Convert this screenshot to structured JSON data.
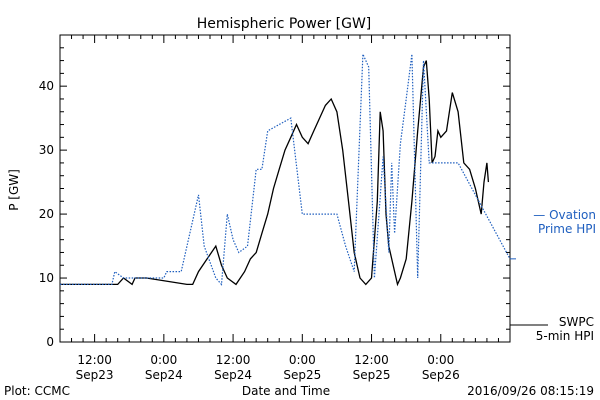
{
  "chart_data": {
    "type": "line",
    "title": "Hemispheric Power [GW]",
    "ylabel": "P [GW]",
    "xlabel": "Date and Time",
    "ylim": [
      0,
      48
    ],
    "yticks": [
      0,
      10,
      20,
      30,
      40
    ],
    "xlim": [
      "2016-09-23 06:00",
      "2016-09-26 12:00"
    ],
    "xticks": [
      {
        "t": "2016-09-23 12:00",
        "time": "12:00",
        "date": "Sep23"
      },
      {
        "t": "2016-09-24 00:00",
        "time": "0:00",
        "date": "Sep24"
      },
      {
        "t": "2016-09-24 12:00",
        "time": "12:00",
        "date": "Sep24"
      },
      {
        "t": "2016-09-25 00:00",
        "time": "0:00",
        "date": "Sep25"
      },
      {
        "t": "2016-09-25 12:00",
        "time": "12:00",
        "date": "Sep25"
      },
      {
        "t": "2016-09-26 00:00",
        "time": "0:00",
        "date": "Sep26"
      }
    ],
    "series": [
      {
        "name": "SWPC 5-min HPI",
        "color": "#000000",
        "style": "solid",
        "points": [
          [
            "2016-09-23 06:00",
            9
          ],
          [
            "2016-09-23 16:00",
            9
          ],
          [
            "2016-09-23 17:00",
            10
          ],
          [
            "2016-09-23 18:30",
            9
          ],
          [
            "2016-09-23 19:00",
            10
          ],
          [
            "2016-09-23 21:00",
            10
          ],
          [
            "2016-09-24 04:00",
            9
          ],
          [
            "2016-09-24 05:00",
            9
          ],
          [
            "2016-09-24 06:00",
            11
          ],
          [
            "2016-09-24 07:30",
            13
          ],
          [
            "2016-09-24 09:00",
            15
          ],
          [
            "2016-09-24 10:00",
            12
          ],
          [
            "2016-09-24 11:00",
            10
          ],
          [
            "2016-09-24 12:30",
            9
          ],
          [
            "2016-09-24 14:00",
            11
          ],
          [
            "2016-09-24 15:00",
            13
          ],
          [
            "2016-09-24 16:00",
            14
          ],
          [
            "2016-09-24 17:00",
            17
          ],
          [
            "2016-09-24 18:00",
            20
          ],
          [
            "2016-09-24 19:00",
            24
          ],
          [
            "2016-09-24 20:00",
            27
          ],
          [
            "2016-09-24 21:00",
            30
          ],
          [
            "2016-09-24 22:00",
            32
          ],
          [
            "2016-09-24 23:00",
            34
          ],
          [
            "2016-09-25 00:00",
            32
          ],
          [
            "2016-09-25 01:00",
            31
          ],
          [
            "2016-09-25 02:00",
            33
          ],
          [
            "2016-09-25 03:00",
            35
          ],
          [
            "2016-09-25 04:00",
            37
          ],
          [
            "2016-09-25 05:00",
            38
          ],
          [
            "2016-09-25 06:00",
            36
          ],
          [
            "2016-09-25 07:00",
            30
          ],
          [
            "2016-09-25 08:00",
            22
          ],
          [
            "2016-09-25 09:00",
            14
          ],
          [
            "2016-09-25 10:00",
            10
          ],
          [
            "2016-09-25 11:00",
            9
          ],
          [
            "2016-09-25 12:00",
            10
          ],
          [
            "2016-09-25 13:00",
            22
          ],
          [
            "2016-09-25 13:30",
            36
          ],
          [
            "2016-09-25 14:00",
            33
          ],
          [
            "2016-09-25 14:30",
            20
          ],
          [
            "2016-09-25 15:00",
            15
          ],
          [
            "2016-09-25 16:00",
            11
          ],
          [
            "2016-09-25 16:30",
            9
          ],
          [
            "2016-09-25 17:00",
            10
          ],
          [
            "2016-09-25 18:00",
            13
          ],
          [
            "2016-09-25 19:00",
            22
          ],
          [
            "2016-09-25 20:00",
            33
          ],
          [
            "2016-09-25 21:00",
            43
          ],
          [
            "2016-09-25 21:30",
            44
          ],
          [
            "2016-09-25 22:00",
            38
          ],
          [
            "2016-09-25 22:30",
            28
          ],
          [
            "2016-09-25 23:00",
            29
          ],
          [
            "2016-09-25 23:30",
            33
          ],
          [
            "2016-09-26 00:00",
            32
          ],
          [
            "2016-09-26 01:00",
            33
          ],
          [
            "2016-09-26 02:00",
            39
          ],
          [
            "2016-09-26 03:00",
            36
          ],
          [
            "2016-09-26 04:00",
            28
          ],
          [
            "2016-09-26 05:00",
            27
          ],
          [
            "2016-09-26 06:00",
            24
          ],
          [
            "2016-09-26 07:00",
            20
          ],
          [
            "2016-09-26 07:30",
            25
          ],
          [
            "2016-09-26 08:00",
            28
          ],
          [
            "2016-09-26 08:15",
            25
          ]
        ]
      },
      {
        "name": "Ovation Prime HPI",
        "color": "#1f5fbf",
        "style": "dotted",
        "points": [
          [
            "2016-09-23 06:00",
            9
          ],
          [
            "2016-09-23 15:00",
            9
          ],
          [
            "2016-09-23 15:30",
            11
          ],
          [
            "2016-09-23 17:00",
            10
          ],
          [
            "2016-09-23 21:00",
            10
          ],
          [
            "2016-09-24 00:00",
            10
          ],
          [
            "2016-09-24 00:30",
            11
          ],
          [
            "2016-09-24 03:00",
            11
          ],
          [
            "2016-09-24 06:00",
            23
          ],
          [
            "2016-09-24 07:00",
            15
          ],
          [
            "2016-09-24 09:00",
            10
          ],
          [
            "2016-09-24 10:00",
            9
          ],
          [
            "2016-09-24 11:00",
            20
          ],
          [
            "2016-09-24 12:00",
            16
          ],
          [
            "2016-09-24 13:00",
            14
          ],
          [
            "2016-09-24 14:30",
            15
          ],
          [
            "2016-09-24 16:00",
            27
          ],
          [
            "2016-09-24 17:00",
            27
          ],
          [
            "2016-09-24 18:00",
            33
          ],
          [
            "2016-09-24 20:00",
            34
          ],
          [
            "2016-09-24 22:00",
            35
          ],
          [
            "2016-09-25 00:00",
            20
          ],
          [
            "2016-09-25 04:00",
            20
          ],
          [
            "2016-09-25 06:00",
            20
          ],
          [
            "2016-09-25 07:30",
            15
          ],
          [
            "2016-09-25 09:00",
            11
          ],
          [
            "2016-09-25 10:30",
            45
          ],
          [
            "2016-09-25 11:30",
            43
          ],
          [
            "2016-09-25 12:30",
            10
          ],
          [
            "2016-09-25 14:00",
            29
          ],
          [
            "2016-09-25 15:00",
            14
          ],
          [
            "2016-09-25 15:30",
            28
          ],
          [
            "2016-09-25 16:00",
            17
          ],
          [
            "2016-09-25 17:00",
            31
          ],
          [
            "2016-09-25 18:00",
            38
          ],
          [
            "2016-09-25 19:00",
            45
          ],
          [
            "2016-09-25 20:00",
            10
          ],
          [
            "2016-09-25 21:00",
            44
          ],
          [
            "2016-09-25 22:00",
            28
          ],
          [
            "2016-09-26 00:00",
            28
          ],
          [
            "2016-09-26 03:00",
            28
          ],
          [
            "2016-09-26 12:00",
            13
          ]
        ]
      }
    ],
    "legend": [
      {
        "line1": "SWPC",
        "line2": "5-min HPI",
        "color": "#000000"
      },
      {
        "line1": "— Ovation",
        "line2": "Prime HPI",
        "color": "#1f5fbf"
      }
    ],
    "footer": {
      "left": "Plot: CCMC",
      "right": "2016/09/26 08:15:19"
    }
  }
}
